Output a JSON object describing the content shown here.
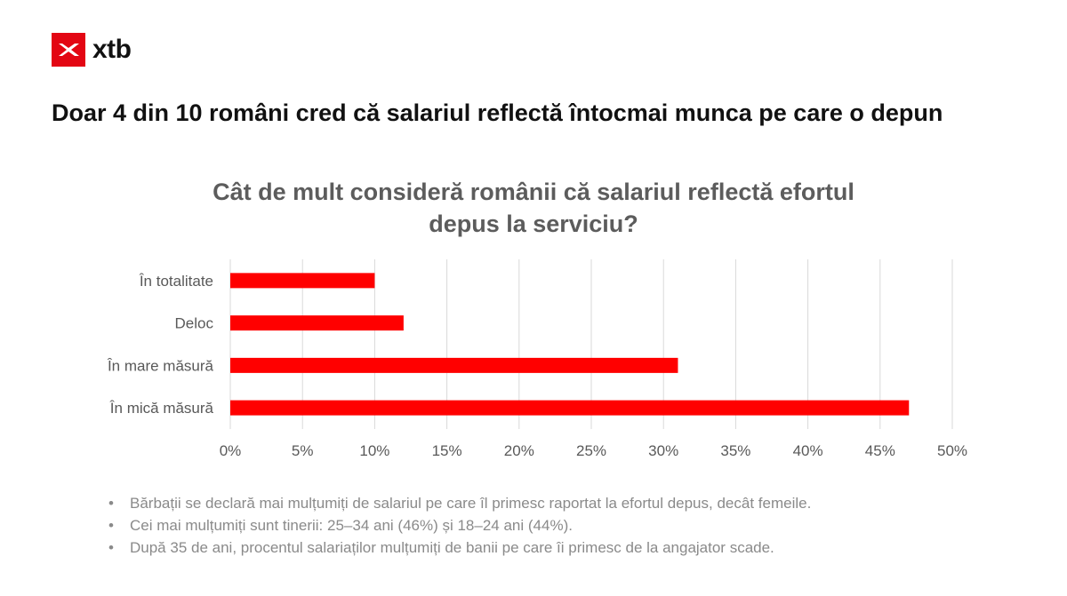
{
  "brand": {
    "name": "xtb",
    "color": "#e30613"
  },
  "headline": "Doar 4 din 10 români cred că salariul reflectă întocmai munca pe care o depun",
  "chart_data": {
    "type": "bar",
    "orientation": "horizontal",
    "title_lines": [
      "Cât de mult consideră românii că salariul reflectă efortul",
      "depus la serviciu?"
    ],
    "categories": [
      "În totalitate",
      "Deloc",
      "În mare măsură",
      "În mică măsură"
    ],
    "values": [
      10,
      12,
      31,
      47
    ],
    "unit": "%",
    "xlim": [
      0,
      50
    ],
    "x_ticks": [
      0,
      5,
      10,
      15,
      20,
      25,
      30,
      35,
      40,
      45,
      50
    ],
    "x_tick_labels": [
      "0%",
      "5%",
      "10%",
      "15%",
      "20%",
      "25%",
      "30%",
      "35%",
      "40%",
      "45%",
      "50%"
    ],
    "bar_color": "#ff0000",
    "grid": true
  },
  "notes": [
    "Bărbații se declară mai mulțumiți de salariul pe care îl primesc raportat la efortul depus, decât femeile.",
    "Cei mai mulțumiți sunt tinerii: 25–34 ani (46%) și 18–24 ani (44%).",
    "După 35 de ani, procentul salariaților mulțumiți de banii pe care îi primesc de la angajator scade."
  ]
}
